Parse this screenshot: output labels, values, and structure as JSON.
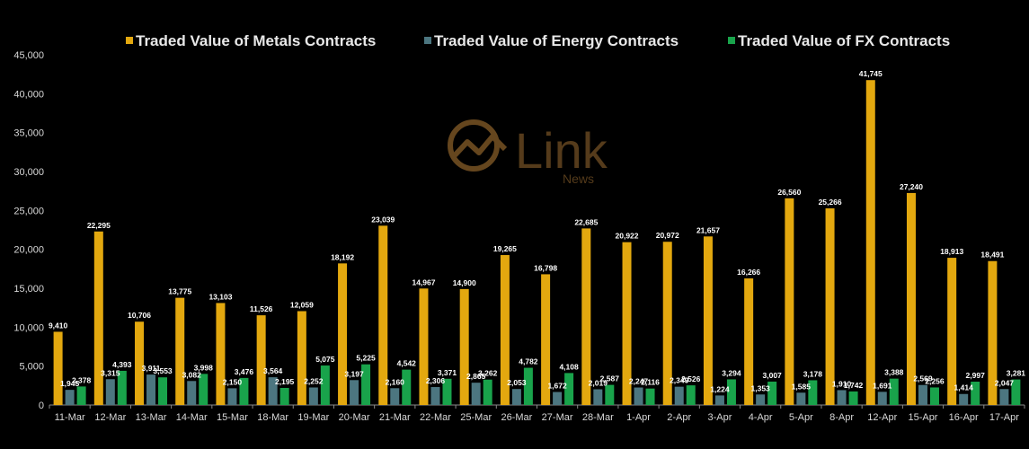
{
  "chart_data": {
    "type": "bar",
    "categories": [
      "11-Mar",
      "12-Mar",
      "13-Mar",
      "14-Mar",
      "15-Mar",
      "18-Mar",
      "19-Mar",
      "20-Mar",
      "21-Mar",
      "22-Mar",
      "25-Mar",
      "26-Mar",
      "27-Mar",
      "28-Mar",
      "1-Apr",
      "2-Apr",
      "3-Apr",
      "4-Apr",
      "5-Apr",
      "8-Apr",
      "12-Apr",
      "15-Apr",
      "16-Apr",
      "17-Apr"
    ],
    "series": [
      {
        "name": "Traded Value of Metals Contracts",
        "color": "#e3a80f",
        "values": [
          9410,
          22295,
          10706,
          13775,
          13103,
          11526,
          12059,
          18192,
          23039,
          14967,
          14900,
          19265,
          16798,
          22685,
          20922,
          20972,
          21657,
          16266,
          26560,
          25266,
          41745,
          27240,
          18913,
          18491
        ]
      },
      {
        "name": "Traded Value of Energy Contracts",
        "color": "#4c7680",
        "values": [
          1945,
          3315,
          3911,
          3082,
          2150,
          3564,
          2252,
          3197,
          2160,
          2306,
          2865,
          2053,
          1672,
          2019,
          2247,
          2349,
          1224,
          1353,
          1585,
          1910,
          1691,
          2569,
          1414,
          2047
        ]
      },
      {
        "name": "Traded Value of FX Contracts",
        "color": "#19a34b",
        "values": [
          2378,
          4393,
          3553,
          3998,
          3476,
          2195,
          5075,
          5225,
          4542,
          3371,
          3262,
          4782,
          4108,
          2587,
          2116,
          2526,
          3294,
          3007,
          3178,
          1742,
          3388,
          2256,
          2997,
          3281
        ]
      }
    ],
    "yticks": [
      "0",
      "5,000",
      "10,000",
      "15,000",
      "20,000",
      "25,000",
      "30,000",
      "35,000",
      "40,000",
      "45,000"
    ],
    "ylim": [
      0,
      45000
    ],
    "legend_position": "top",
    "grid": false,
    "title": "",
    "xlabel": "",
    "ylabel": ""
  },
  "logo": {
    "main": "Link",
    "sub": "News"
  }
}
